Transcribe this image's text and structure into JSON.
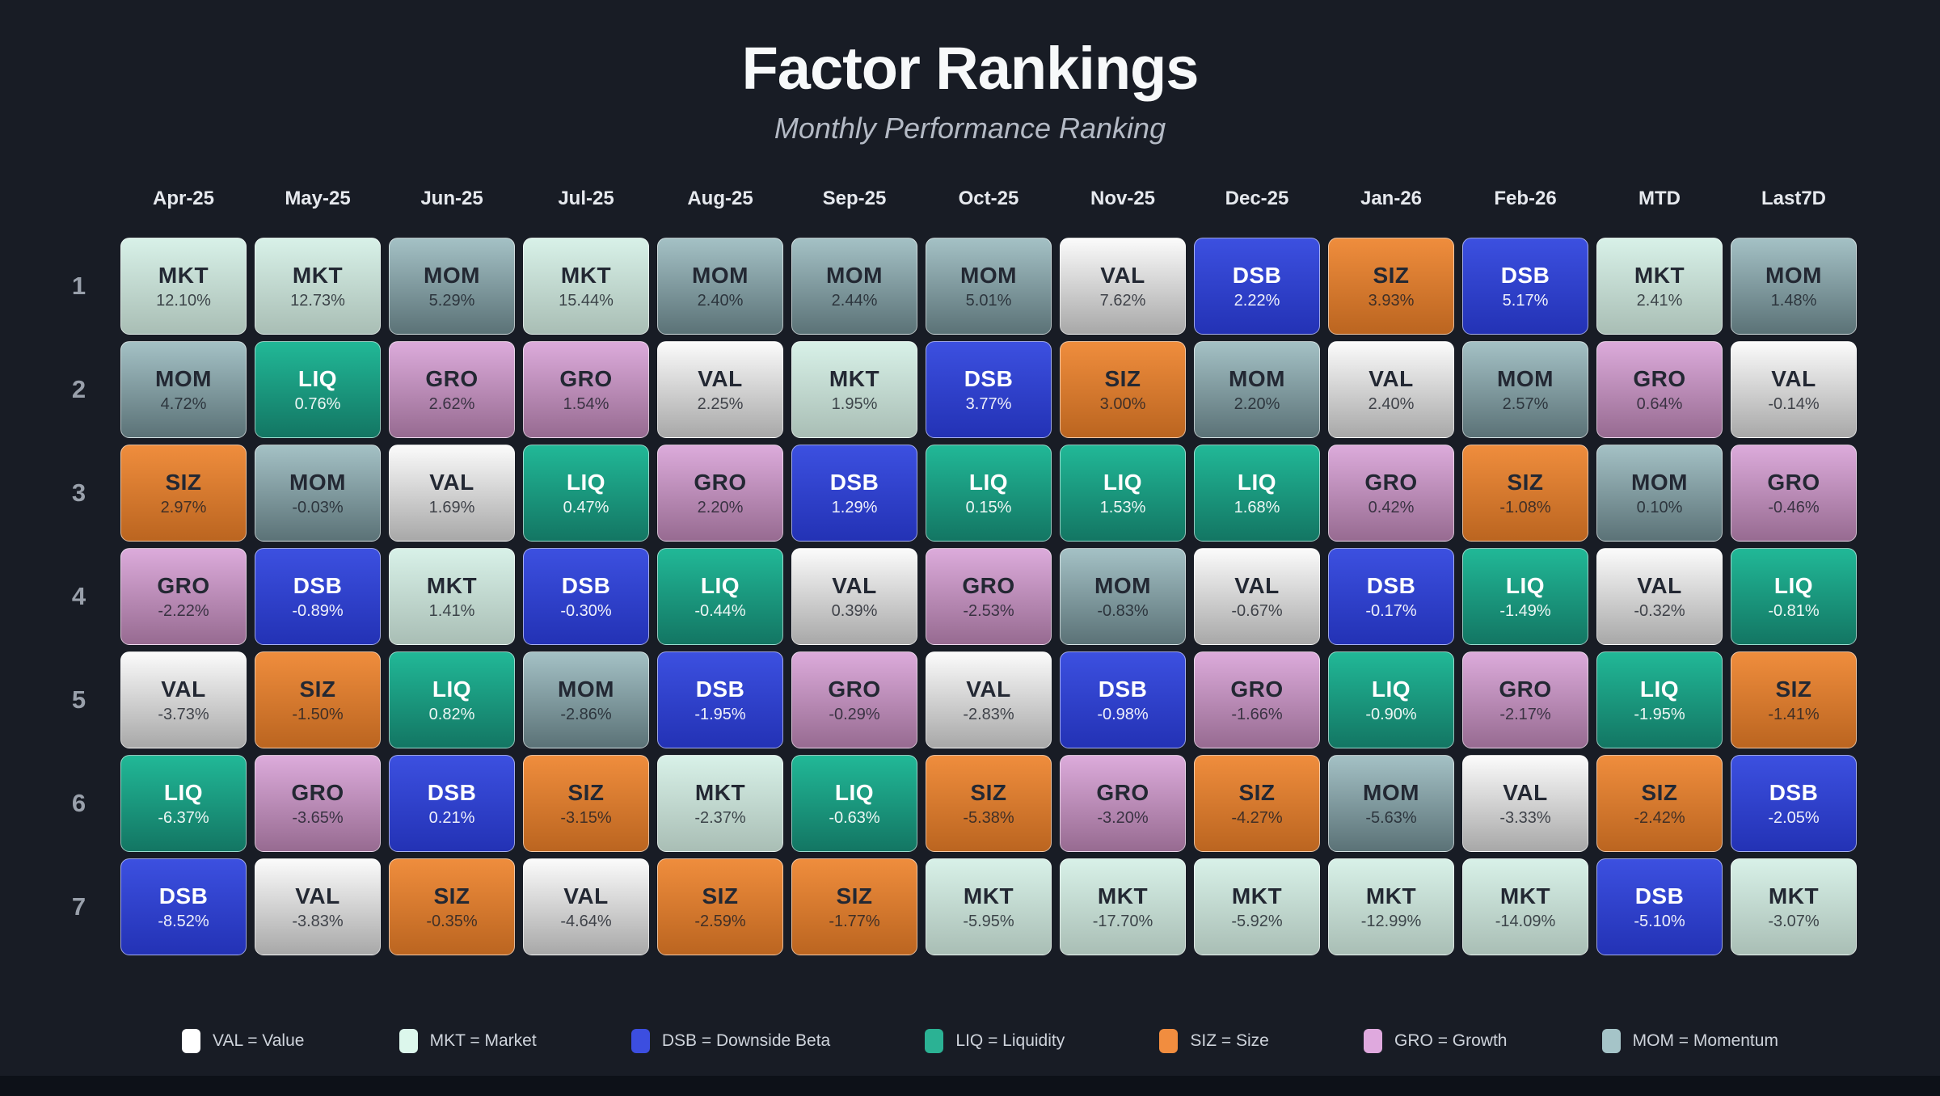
{
  "page": {
    "background": "#181c25",
    "footer_bar_color": "#0d1118"
  },
  "chart_data": {
    "type": "table",
    "title": "Factor Rankings",
    "subtitle": "Monthly Performance Ranking",
    "columns": [
      "Apr-25",
      "May-25",
      "Jun-25",
      "Jul-25",
      "Aug-25",
      "Sep-25",
      "Oct-25",
      "Nov-25",
      "Dec-25",
      "Jan-26",
      "Feb-26",
      "MTD",
      "Last7D"
    ],
    "rank_labels": [
      "1",
      "2",
      "3",
      "4",
      "5",
      "6",
      "7"
    ],
    "rows": [
      [
        {
          "f": "MKT",
          "v": "12.10%"
        },
        {
          "f": "MKT",
          "v": "12.73%"
        },
        {
          "f": "MOM",
          "v": "5.29%"
        },
        {
          "f": "MKT",
          "v": "15.44%"
        },
        {
          "f": "MOM",
          "v": "2.40%"
        },
        {
          "f": "MOM",
          "v": "2.44%"
        },
        {
          "f": "MOM",
          "v": "5.01%"
        },
        {
          "f": "VAL",
          "v": "7.62%"
        },
        {
          "f": "DSB",
          "v": "2.22%"
        },
        {
          "f": "SIZ",
          "v": "3.93%"
        },
        {
          "f": "DSB",
          "v": "5.17%"
        },
        {
          "f": "MKT",
          "v": "2.41%"
        },
        {
          "f": "MOM",
          "v": "1.48%"
        }
      ],
      [
        {
          "f": "MOM",
          "v": "4.72%"
        },
        {
          "f": "LIQ",
          "v": "0.76%"
        },
        {
          "f": "GRO",
          "v": "2.62%"
        },
        {
          "f": "GRO",
          "v": "1.54%"
        },
        {
          "f": "VAL",
          "v": "2.25%"
        },
        {
          "f": "MKT",
          "v": "1.95%"
        },
        {
          "f": "DSB",
          "v": "3.77%"
        },
        {
          "f": "SIZ",
          "v": "3.00%"
        },
        {
          "f": "MOM",
          "v": "2.20%"
        },
        {
          "f": "VAL",
          "v": "2.40%"
        },
        {
          "f": "MOM",
          "v": "2.57%"
        },
        {
          "f": "GRO",
          "v": "0.64%"
        },
        {
          "f": "VAL",
          "v": "-0.14%"
        }
      ],
      [
        {
          "f": "SIZ",
          "v": "2.97%"
        },
        {
          "f": "MOM",
          "v": "-0.03%"
        },
        {
          "f": "VAL",
          "v": "1.69%"
        },
        {
          "f": "LIQ",
          "v": "0.47%"
        },
        {
          "f": "GRO",
          "v": "2.20%"
        },
        {
          "f": "DSB",
          "v": "1.29%"
        },
        {
          "f": "LIQ",
          "v": "0.15%"
        },
        {
          "f": "LIQ",
          "v": "1.53%"
        },
        {
          "f": "LIQ",
          "v": "1.68%"
        },
        {
          "f": "GRO",
          "v": "0.42%"
        },
        {
          "f": "SIZ",
          "v": "-1.08%"
        },
        {
          "f": "MOM",
          "v": "0.10%"
        },
        {
          "f": "GRO",
          "v": "-0.46%"
        }
      ],
      [
        {
          "f": "GRO",
          "v": "-2.22%"
        },
        {
          "f": "DSB",
          "v": "-0.89%"
        },
        {
          "f": "MKT",
          "v": "1.41%"
        },
        {
          "f": "DSB",
          "v": "-0.30%"
        },
        {
          "f": "LIQ",
          "v": "-0.44%"
        },
        {
          "f": "VAL",
          "v": "0.39%"
        },
        {
          "f": "GRO",
          "v": "-2.53%"
        },
        {
          "f": "MOM",
          "v": "-0.83%"
        },
        {
          "f": "VAL",
          "v": "-0.67%"
        },
        {
          "f": "DSB",
          "v": "-0.17%"
        },
        {
          "f": "LIQ",
          "v": "-1.49%"
        },
        {
          "f": "VAL",
          "v": "-0.32%"
        },
        {
          "f": "LIQ",
          "v": "-0.81%"
        }
      ],
      [
        {
          "f": "VAL",
          "v": "-3.73%"
        },
        {
          "f": "SIZ",
          "v": "-1.50%"
        },
        {
          "f": "LIQ",
          "v": "0.82%"
        },
        {
          "f": "MOM",
          "v": "-2.86%"
        },
        {
          "f": "DSB",
          "v": "-1.95%"
        },
        {
          "f": "GRO",
          "v": "-0.29%"
        },
        {
          "f": "VAL",
          "v": "-2.83%"
        },
        {
          "f": "DSB",
          "v": "-0.98%"
        },
        {
          "f": "GRO",
          "v": "-1.66%"
        },
        {
          "f": "LIQ",
          "v": "-0.90%"
        },
        {
          "f": "GRO",
          "v": "-2.17%"
        },
        {
          "f": "LIQ",
          "v": "-1.95%"
        },
        {
          "f": "SIZ",
          "v": "-1.41%"
        }
      ],
      [
        {
          "f": "LIQ",
          "v": "-6.37%"
        },
        {
          "f": "GRO",
          "v": "-3.65%"
        },
        {
          "f": "DSB",
          "v": "0.21%"
        },
        {
          "f": "SIZ",
          "v": "-3.15%"
        },
        {
          "f": "MKT",
          "v": "-2.37%"
        },
        {
          "f": "LIQ",
          "v": "-0.63%"
        },
        {
          "f": "SIZ",
          "v": "-5.38%"
        },
        {
          "f": "GRO",
          "v": "-3.20%"
        },
        {
          "f": "SIZ",
          "v": "-4.27%"
        },
        {
          "f": "MOM",
          "v": "-5.63%"
        },
        {
          "f": "VAL",
          "v": "-3.33%"
        },
        {
          "f": "SIZ",
          "v": "-2.42%"
        },
        {
          "f": "DSB",
          "v": "-2.05%"
        }
      ],
      [
        {
          "f": "DSB",
          "v": "-8.52%"
        },
        {
          "f": "VAL",
          "v": "-3.83%"
        },
        {
          "f": "SIZ",
          "v": "-0.35%"
        },
        {
          "f": "VAL",
          "v": "-4.64%"
        },
        {
          "f": "SIZ",
          "v": "-2.59%"
        },
        {
          "f": "SIZ",
          "v": "-1.77%"
        },
        {
          "f": "MKT",
          "v": "-5.95%"
        },
        {
          "f": "MKT",
          "v": "-17.70%"
        },
        {
          "f": "MKT",
          "v": "-5.92%"
        },
        {
          "f": "MKT",
          "v": "-12.99%"
        },
        {
          "f": "MKT",
          "v": "-14.09%"
        },
        {
          "f": "DSB",
          "v": "-5.10%"
        },
        {
          "f": "MKT",
          "v": "-3.07%"
        }
      ]
    ],
    "factors": {
      "VAL": {
        "name": "Value",
        "gradient_top": "#fbfbfb",
        "gradient_bottom": "#a8a8a8",
        "text": "dark",
        "legend_swatch": "#ffffff"
      },
      "MKT": {
        "name": "Market",
        "gradient_top": "#d8f1e8",
        "gradient_bottom": "#a9beb5",
        "text": "dark",
        "legend_swatch": "#dcf7ec"
      },
      "DSB": {
        "name": "Downside Beta",
        "gradient_top": "#3c50e0",
        "gradient_bottom": "#2332b5",
        "text": "light",
        "legend_swatch": "#3c4ee0"
      },
      "LIQ": {
        "name": "Liquidity",
        "gradient_top": "#21b897",
        "gradient_bottom": "#137663",
        "text": "light",
        "legend_swatch": "#2bb294"
      },
      "SIZ": {
        "name": "Size",
        "gradient_top": "#ef8d3d",
        "gradient_bottom": "#bb6520",
        "text": "dark",
        "legend_swatch": "#f18d3f"
      },
      "GRO": {
        "name": "Growth",
        "gradient_top": "#dcabdb",
        "gradient_bottom": "#976b91",
        "text": "dark",
        "legend_swatch": "#dfa9de"
      },
      "MOM": {
        "name": "Momentum",
        "gradient_top": "#a4c1c5",
        "gradient_bottom": "#5b7277",
        "text": "dark",
        "legend_swatch": "#a5c4c8"
      }
    },
    "legend": [
      {
        "code": "VAL",
        "label": "VAL = Value"
      },
      {
        "code": "MKT",
        "label": "MKT = Market"
      },
      {
        "code": "DSB",
        "label": "DSB = Downside Beta"
      },
      {
        "code": "LIQ",
        "label": "LIQ = Liquidity"
      },
      {
        "code": "SIZ",
        "label": "SIZ = Size"
      },
      {
        "code": "GRO",
        "label": "GRO = Growth"
      },
      {
        "code": "MOM",
        "label": "MOM = Momentum"
      }
    ]
  }
}
